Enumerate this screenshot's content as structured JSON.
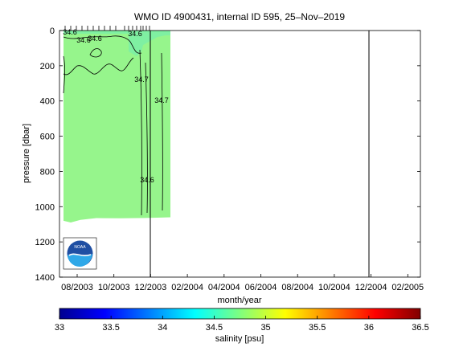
{
  "chart_data": {
    "type": "heatmap",
    "title": "WMO ID 4900431, internal ID 595, 25–Nov–2019",
    "xlabel": "month/year",
    "ylabel": "pressure [dbar]",
    "x_tick_labels": [
      "08/2003",
      "10/2003",
      "12/2003",
      "02/2004",
      "04/2004",
      "06/2004",
      "08/2004",
      "10/2004",
      "12/2004",
      "02/2005"
    ],
    "y_tick_labels": [
      "0",
      "200",
      "400",
      "600",
      "800",
      "1000",
      "1200",
      "1400"
    ],
    "ylim": [
      1400,
      0
    ],
    "y_reversed": true,
    "colorbar": {
      "label": "salinity [psu]",
      "range": [
        33,
        36.5
      ],
      "tick_labels": [
        "33",
        "33.5",
        "34",
        "34.5",
        "35",
        "35.5",
        "36",
        "36.5"
      ],
      "colormap": "jet"
    },
    "field_value_typical": 34.7,
    "field_value_shallow": 34.6,
    "contours": [
      {
        "label": "34.6",
        "level": 34.6
      },
      {
        "label": "34.6",
        "level": 34.6
      },
      {
        "label": "34.6",
        "level": 34.6
      },
      {
        "label": "34.7",
        "level": 34.7
      },
      {
        "label": "34.7",
        "level": 34.7
      },
      {
        "label": "34.6",
        "level": 34.6
      },
      {
        "label": "34.6",
        "level": 34.6
      }
    ],
    "data_extent": {
      "x_start": "08/2003",
      "x_end": "02/2004",
      "max_pressure": 1090
    },
    "grid": false
  },
  "colors": {
    "fill_main": "#96f58c",
    "fill_shallow": "#7ff0a2",
    "vertical_markers": "#000000"
  },
  "logo": {
    "text": "NOAA"
  }
}
